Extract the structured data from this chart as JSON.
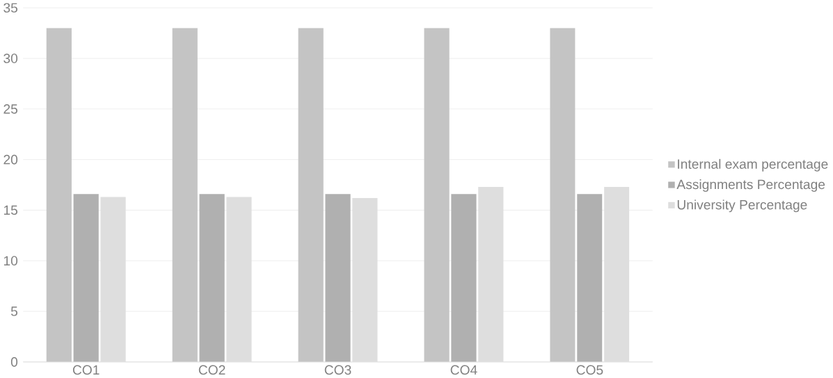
{
  "chart_data": {
    "type": "bar",
    "categories": [
      "CO1",
      "CO2",
      "CO3",
      "CO4",
      "CO5"
    ],
    "series": [
      {
        "name": "Internal exam percentage",
        "color": "#c4c4c4",
        "values": [
          33,
          33,
          33,
          33,
          33
        ]
      },
      {
        "name": "Assignments Percentage",
        "color": "#b0b0b0",
        "values": [
          16.6,
          16.6,
          16.6,
          16.6,
          16.6
        ]
      },
      {
        "name": "University Percentage",
        "color": "#dedede",
        "values": [
          16.3,
          16.3,
          16.2,
          17.3,
          17.3
        ]
      }
    ],
    "ylim": [
      0,
      35
    ],
    "yticks": [
      0,
      5,
      10,
      15,
      20,
      25,
      30,
      35
    ],
    "grid": "y",
    "legend": "right"
  }
}
